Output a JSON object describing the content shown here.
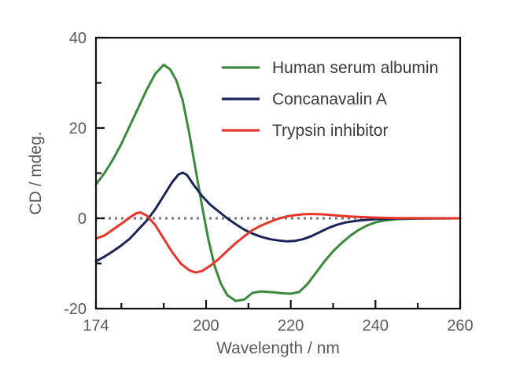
{
  "chart_data": {
    "type": "line",
    "title": "",
    "xlabel": "Wavelength / nm",
    "ylabel": "CD / mdeg.",
    "xlim": [
      174,
      260
    ],
    "ylim": [
      -20,
      40
    ],
    "x_ticks": [
      174,
      200,
      220,
      240,
      260
    ],
    "x_tick_labels": [
      "174",
      "200",
      "220",
      "240",
      "260"
    ],
    "x_minor_ticks": [
      180,
      190,
      210,
      230,
      250
    ],
    "y_ticks": [
      -20,
      0,
      20,
      40
    ],
    "y_tick_labels": [
      "-20",
      "0",
      "20",
      "40"
    ],
    "y_minor_ticks": [
      -10,
      10,
      30
    ],
    "grid": false,
    "zero_reference_line": {
      "y": 0,
      "style": "dotted",
      "color": "#7f7f7f"
    },
    "legend_position": "top-right",
    "series": [
      {
        "name": "Human serum albumin",
        "color": "#3a8a3c",
        "points": [
          [
            174,
            7.5
          ],
          [
            176,
            10
          ],
          [
            178,
            13
          ],
          [
            180,
            16.5
          ],
          [
            182,
            20.5
          ],
          [
            184,
            24.5
          ],
          [
            186,
            28.5
          ],
          [
            188,
            32
          ],
          [
            190,
            34
          ],
          [
            191.5,
            33
          ],
          [
            193,
            30.5
          ],
          [
            194.5,
            26
          ],
          [
            196,
            19
          ],
          [
            197.5,
            11
          ],
          [
            199,
            3
          ],
          [
            200.5,
            -4.5
          ],
          [
            202,
            -10.5
          ],
          [
            203.5,
            -14.5
          ],
          [
            205,
            -17
          ],
          [
            207,
            -18.3
          ],
          [
            209,
            -18
          ],
          [
            211,
            -16.5
          ],
          [
            213,
            -16.2
          ],
          [
            216,
            -16.4
          ],
          [
            218,
            -16.6
          ],
          [
            220,
            -16.7
          ],
          [
            222,
            -16.3
          ],
          [
            224,
            -14.5
          ],
          [
            226,
            -12
          ],
          [
            228,
            -9.5
          ],
          [
            230,
            -7.3
          ],
          [
            232,
            -5.5
          ],
          [
            234,
            -3.9
          ],
          [
            236,
            -2.6
          ],
          [
            238,
            -1.6
          ],
          [
            240,
            -0.9
          ],
          [
            242,
            -0.5
          ],
          [
            245,
            -0.2
          ],
          [
            250,
            -0.05
          ],
          [
            260,
            0
          ]
        ]
      },
      {
        "name": "Concanavalin A",
        "color": "#1a2459",
        "points": [
          [
            174,
            -9.5
          ],
          [
            176,
            -8.5
          ],
          [
            178,
            -7.3
          ],
          [
            180,
            -6
          ],
          [
            182,
            -4.5
          ],
          [
            184,
            -2.5
          ],
          [
            186,
            -0.5
          ],
          [
            188,
            2
          ],
          [
            190,
            5
          ],
          [
            192,
            8
          ],
          [
            193.5,
            9.7
          ],
          [
            194.5,
            10.1
          ],
          [
            195.5,
            9.6
          ],
          [
            197,
            7.5
          ],
          [
            199,
            5
          ],
          [
            201,
            3
          ],
          [
            203,
            1.5
          ],
          [
            205,
            0
          ],
          [
            207,
            -1.3
          ],
          [
            209,
            -2.5
          ],
          [
            211,
            -3.4
          ],
          [
            213,
            -4.1
          ],
          [
            215,
            -4.6
          ],
          [
            217,
            -4.9
          ],
          [
            219,
            -5.1
          ],
          [
            221,
            -5
          ],
          [
            223,
            -4.6
          ],
          [
            225,
            -3.9
          ],
          [
            227,
            -3
          ],
          [
            229,
            -2.1
          ],
          [
            231,
            -1.4
          ],
          [
            233,
            -0.9
          ],
          [
            236,
            -0.5
          ],
          [
            240,
            -0.2
          ],
          [
            245,
            -0.05
          ],
          [
            260,
            0
          ]
        ]
      },
      {
        "name": "Trypsin inhibitor",
        "color": "#e8352a",
        "points": [
          [
            174,
            -4.5
          ],
          [
            176,
            -3.8
          ],
          [
            178,
            -2.5
          ],
          [
            180,
            -1.2
          ],
          [
            182,
            0.2
          ],
          [
            183.5,
            1.1
          ],
          [
            184.5,
            1.3
          ],
          [
            186,
            0.6
          ],
          [
            188,
            -1.5
          ],
          [
            190,
            -4.5
          ],
          [
            192,
            -7.5
          ],
          [
            194,
            -10
          ],
          [
            196,
            -11.5
          ],
          [
            197.5,
            -12
          ],
          [
            199,
            -11.7
          ],
          [
            201,
            -10.5
          ],
          [
            203,
            -9
          ],
          [
            205,
            -7.2
          ],
          [
            207,
            -5.5
          ],
          [
            209,
            -4
          ],
          [
            211,
            -2.6
          ],
          [
            213,
            -1.6
          ],
          [
            215,
            -0.8
          ],
          [
            217,
            -0.1
          ],
          [
            219,
            0.4
          ],
          [
            221,
            0.7
          ],
          [
            223,
            0.9
          ],
          [
            225,
            0.95
          ],
          [
            228,
            0.85
          ],
          [
            231,
            0.6
          ],
          [
            234,
            0.4
          ],
          [
            237,
            0.25
          ],
          [
            240,
            0.15
          ],
          [
            245,
            0.05
          ],
          [
            260,
            0
          ]
        ]
      }
    ]
  }
}
